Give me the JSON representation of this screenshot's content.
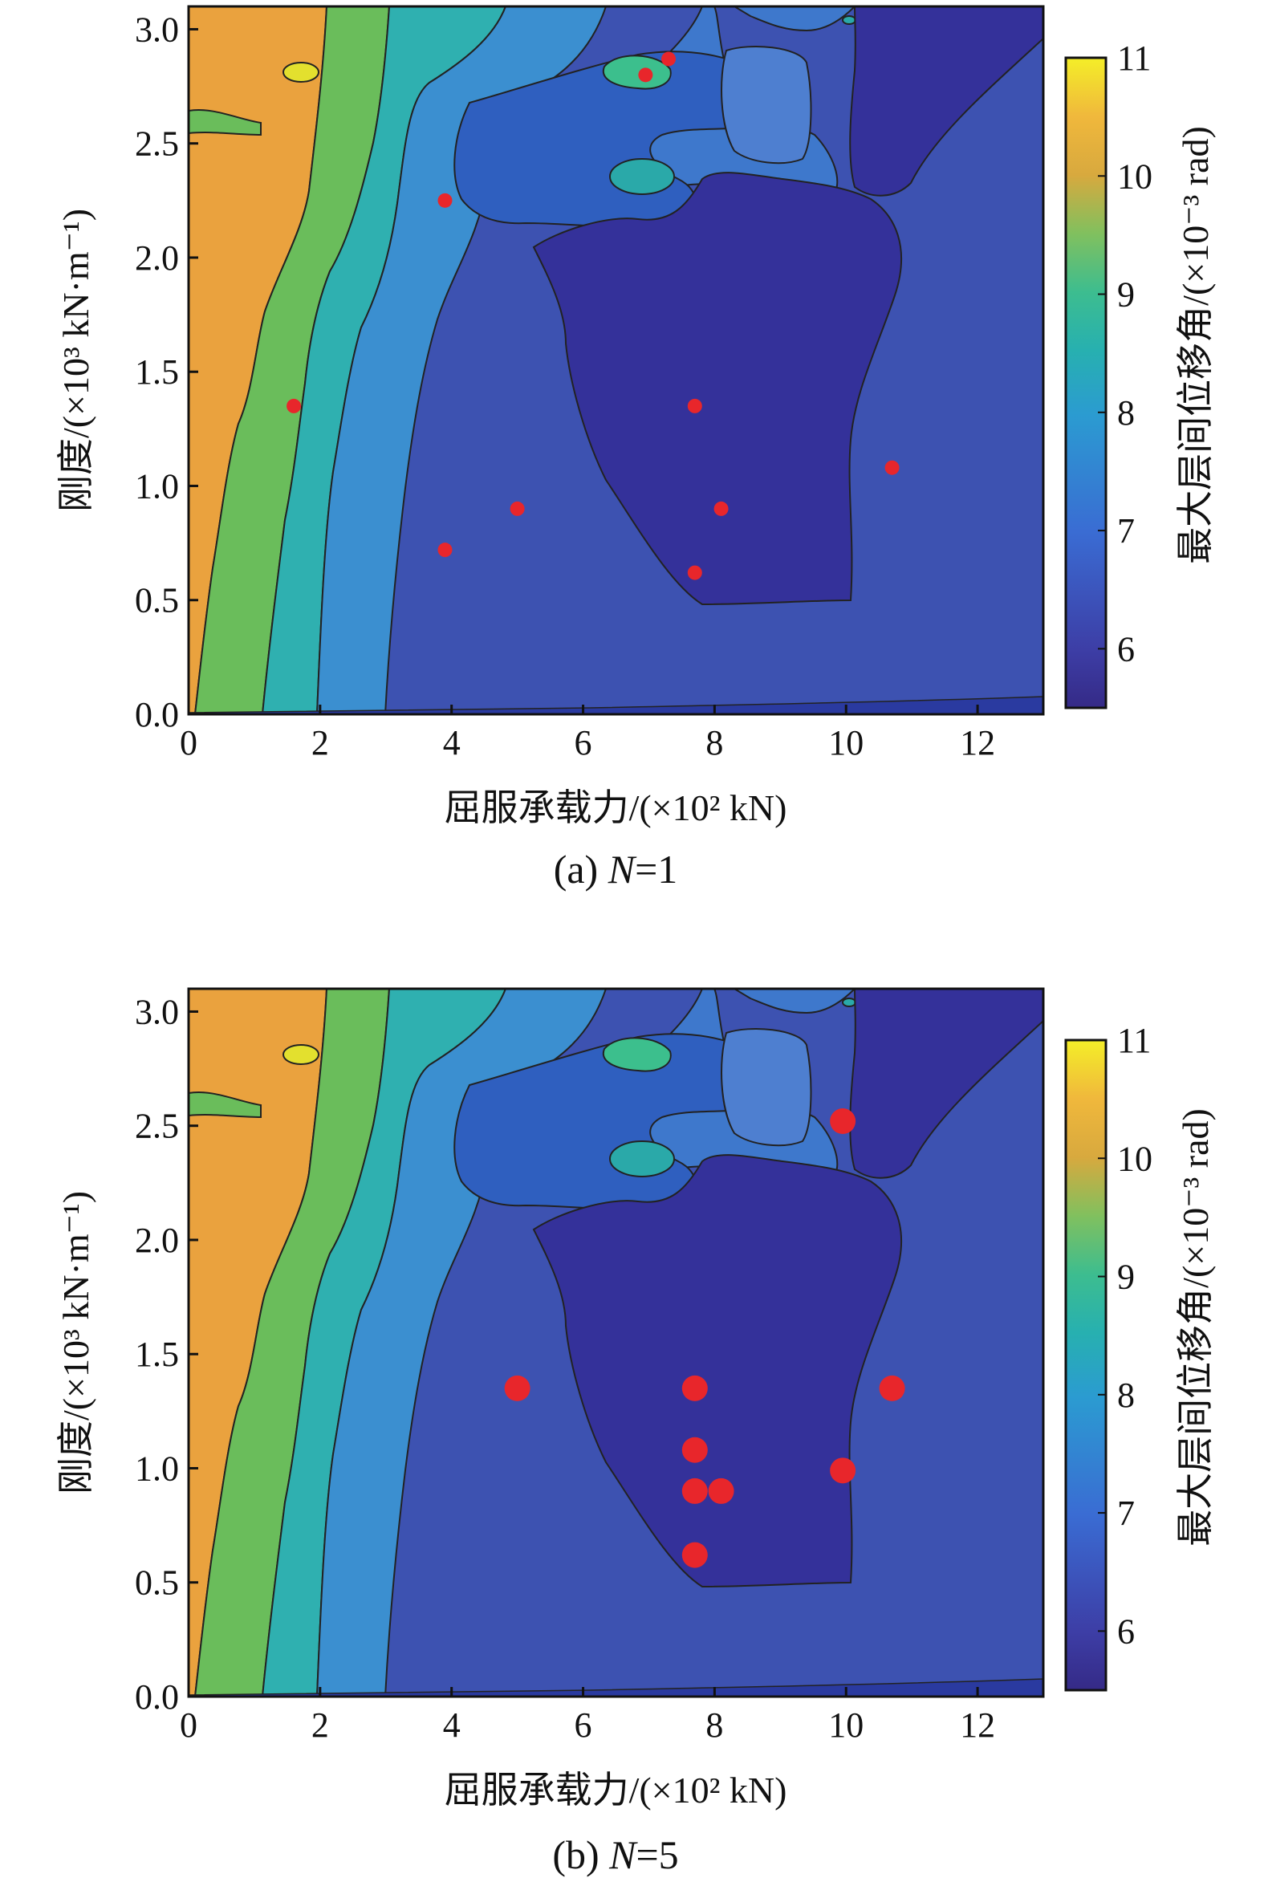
{
  "chart_data": [
    {
      "type": "heatmap",
      "title": "",
      "caption_prefix": "(a) ",
      "caption_var": "N",
      "caption_suffix": "=1",
      "xlabel": "屈服承载力/(×10² kN)",
      "ylabel": "刚度/(×10³ kN·m⁻¹)",
      "xlim": [
        0,
        13
      ],
      "ylim": [
        0,
        3.1
      ],
      "xticks": [
        "0",
        "2",
        "4",
        "6",
        "8",
        "10",
        "12"
      ],
      "yticks": [
        "0.0",
        "0.5",
        "1.0",
        "1.5",
        "2.0",
        "2.5",
        "3.0"
      ],
      "colorbar": {
        "label": "最大层间位移角/(×10⁻³ rad)",
        "range": [
          5.5,
          11
        ],
        "ticks": [
          "6",
          "7",
          "8",
          "9",
          "10",
          "11"
        ]
      },
      "points": [
        {
          "x": 1.6,
          "y": 1.35
        },
        {
          "x": 3.9,
          "y": 2.25
        },
        {
          "x": 3.9,
          "y": 0.72
        },
        {
          "x": 5.0,
          "y": 0.9
        },
        {
          "x": 6.95,
          "y": 2.8
        },
        {
          "x": 7.3,
          "y": 2.87
        },
        {
          "x": 7.7,
          "y": 1.35
        },
        {
          "x": 7.7,
          "y": 0.62
        },
        {
          "x": 8.1,
          "y": 0.9
        },
        {
          "x": 10.7,
          "y": 1.08
        }
      ],
      "marker_color": "#e8262b",
      "grid": false
    },
    {
      "type": "heatmap",
      "title": "",
      "caption_prefix": "(b) ",
      "caption_var": "N",
      "caption_suffix": "=5",
      "xlabel": "屈服承载力/(×10² kN)",
      "ylabel": "刚度/(×10³ kN·m⁻¹)",
      "xlim": [
        0,
        13
      ],
      "ylim": [
        0,
        3.1
      ],
      "xticks": [
        "0",
        "2",
        "4",
        "6",
        "8",
        "10",
        "12"
      ],
      "yticks": [
        "0.0",
        "0.5",
        "1.0",
        "1.5",
        "2.0",
        "2.5",
        "3.0"
      ],
      "colorbar": {
        "label": "最大层间位移角/(×10⁻³ rad)",
        "range": [
          5.5,
          11
        ],
        "ticks": [
          "6",
          "7",
          "8",
          "9",
          "10",
          "11"
        ]
      },
      "points": [
        {
          "x": 5.0,
          "y": 1.35
        },
        {
          "x": 7.7,
          "y": 1.35
        },
        {
          "x": 7.7,
          "y": 1.08
        },
        {
          "x": 7.7,
          "y": 0.9
        },
        {
          "x": 8.1,
          "y": 0.9
        },
        {
          "x": 7.7,
          "y": 0.62
        },
        {
          "x": 9.95,
          "y": 2.52
        },
        {
          "x": 9.95,
          "y": 0.99
        },
        {
          "x": 10.7,
          "y": 1.35
        }
      ],
      "marker_color": "#e8262b",
      "grid": false
    }
  ]
}
